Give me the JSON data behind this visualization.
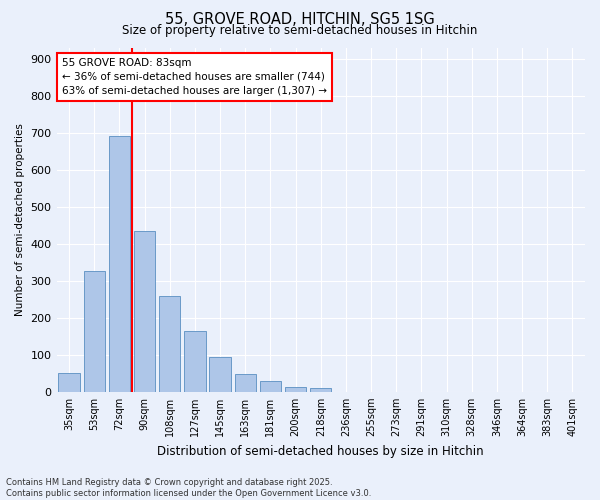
{
  "title": "55, GROVE ROAD, HITCHIN, SG5 1SG",
  "subtitle": "Size of property relative to semi-detached houses in Hitchin",
  "xlabel": "Distribution of semi-detached houses by size in Hitchin",
  "ylabel": "Number of semi-detached properties",
  "categories": [
    "35sqm",
    "53sqm",
    "72sqm",
    "90sqm",
    "108sqm",
    "127sqm",
    "145sqm",
    "163sqm",
    "181sqm",
    "200sqm",
    "218sqm",
    "236sqm",
    "255sqm",
    "273sqm",
    "291sqm",
    "310sqm",
    "328sqm",
    "346sqm",
    "364sqm",
    "383sqm",
    "401sqm"
  ],
  "values": [
    50,
    325,
    690,
    435,
    258,
    165,
    95,
    47,
    30,
    12,
    10,
    0,
    0,
    0,
    0,
    0,
    0,
    0,
    0,
    0,
    0
  ],
  "bar_color": "#aec6e8",
  "bar_edge_color": "#5a8fc2",
  "vline_x_index": 2,
  "vline_color": "red",
  "annotation_title": "55 GROVE ROAD: 83sqm",
  "annotation_line1": "← 36% of semi-detached houses are smaller (744)",
  "annotation_line2": "63% of semi-detached houses are larger (1,307) →",
  "ylim": [
    0,
    930
  ],
  "yticks": [
    0,
    100,
    200,
    300,
    400,
    500,
    600,
    700,
    800,
    900
  ],
  "footer_line1": "Contains HM Land Registry data © Crown copyright and database right 2025.",
  "footer_line2": "Contains public sector information licensed under the Open Government Licence v3.0.",
  "bg_color": "#eaf0fb",
  "plot_bg_color": "#eaf0fb",
  "grid_color": "#ffffff",
  "title_fontsize": 10.5,
  "subtitle_fontsize": 8.5
}
